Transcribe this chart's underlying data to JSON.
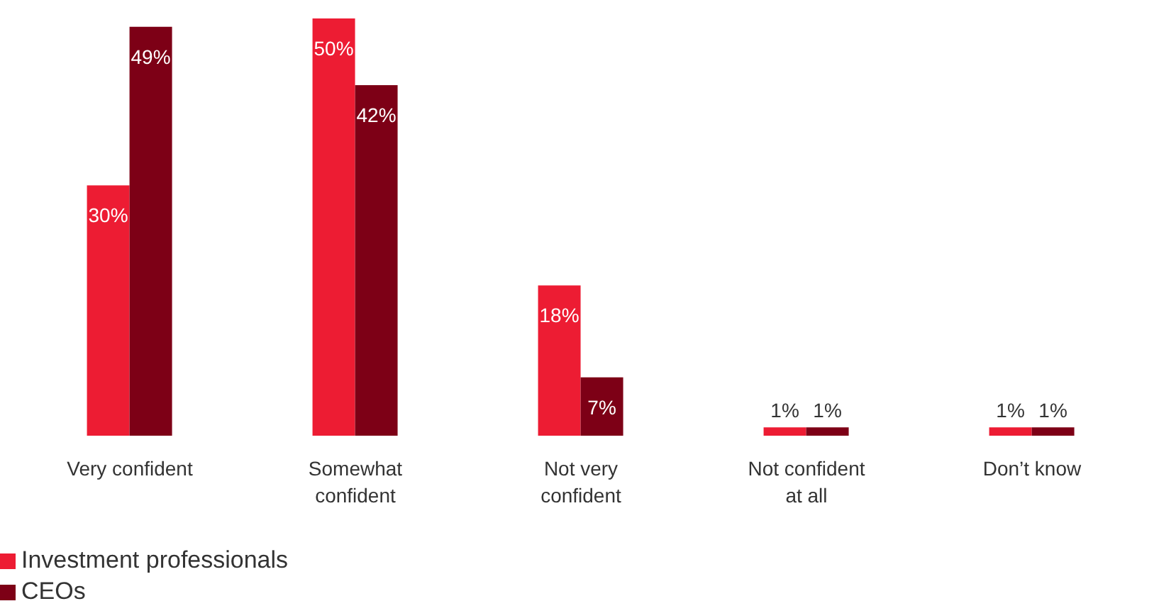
{
  "chart_data": {
    "type": "bar",
    "categories": [
      "Very confident",
      "Somewhat confident",
      "Not very confident",
      "Not confident at all",
      "Don’t know"
    ],
    "series": [
      {
        "name": "Investment professionals",
        "color": "#ed1c33",
        "values": [
          30,
          50,
          18,
          1,
          1
        ],
        "value_labels": [
          "30%",
          "50%",
          "18%",
          "1%",
          "1%"
        ]
      },
      {
        "name": "CEOs",
        "color": "#7d0016",
        "values": [
          49,
          42,
          7,
          1,
          1
        ],
        "value_labels": [
          "49%",
          "42%",
          "7%",
          "1%",
          "1%"
        ]
      }
    ],
    "legend": "bottom left"
  }
}
